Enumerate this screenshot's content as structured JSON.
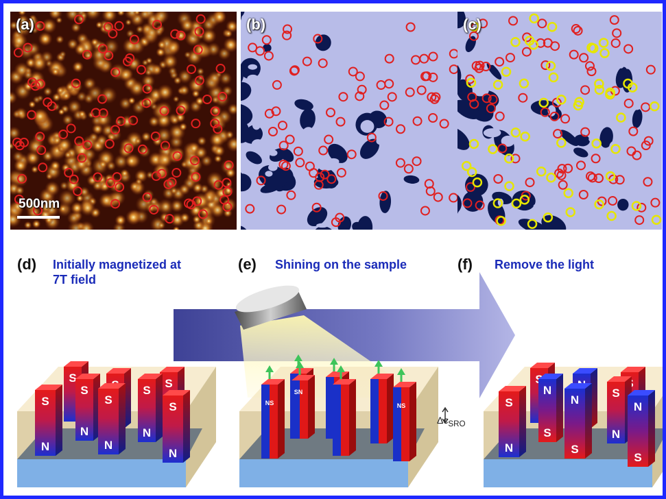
{
  "panels": {
    "a": {
      "tag": "(a)",
      "scale_label": "500nm"
    },
    "b": {
      "tag": "(b)"
    },
    "c": {
      "tag": "(c)"
    }
  },
  "steps": [
    {
      "letter": "(d)",
      "caption_line1": "Initially magnetized at",
      "caption_line2": "7T field"
    },
    {
      "letter": "(e)",
      "caption_line1": "Shining on the sample"
    },
    {
      "letter": "(f)",
      "caption_line1": "Remove the light"
    }
  ],
  "pillar_labels": {
    "south": "S",
    "north": "N",
    "ns": "NS",
    "sn": "SN"
  },
  "delta_label": "Δc",
  "delta_sub": "SRO",
  "colors": {
    "border": "#1e28ff",
    "caption": "#1a2bb8",
    "marker_red": "#e02020",
    "marker_yellow": "#e6e600",
    "domain_light": "#b8bce8",
    "domain_dark": "#0c1850",
    "pillar_red": "#e01818",
    "pillar_blue": "#1a30c8",
    "arrow": "#5e63b0",
    "light_beam": "#fff6a0"
  },
  "icons": [
    "light-source-icon",
    "process-arrow-icon",
    "magnetization-arrow-icon"
  ]
}
